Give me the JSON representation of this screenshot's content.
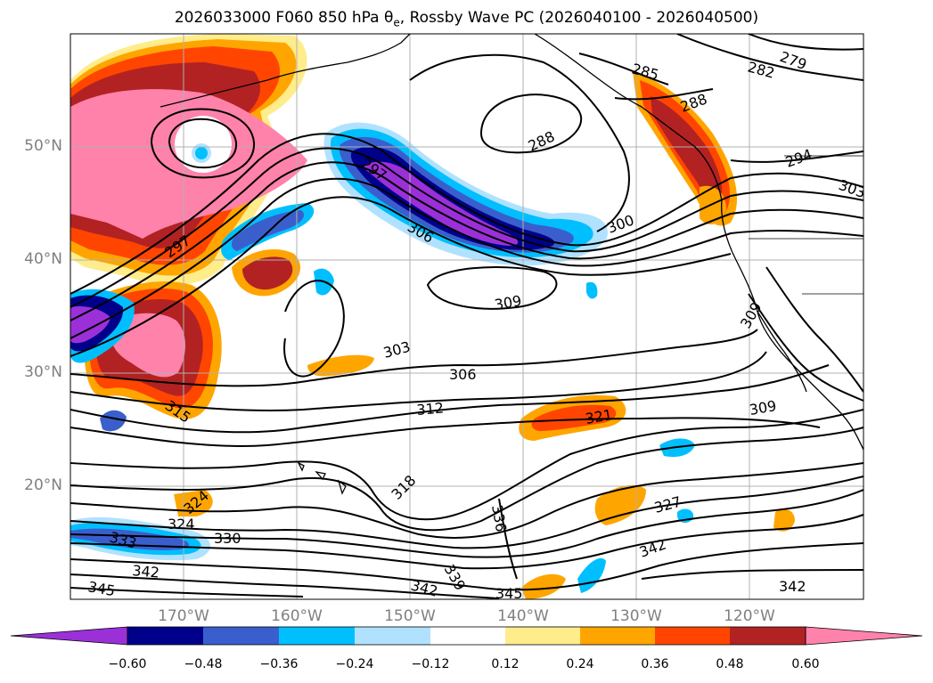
{
  "title": {
    "prefix": "2026033000 F060 850 hPa θ",
    "subscript": "e",
    "suffix": ", Rossby Wave PC (2026040100 - 2026040500)"
  },
  "axes": {
    "lat_labels": [
      "50°N",
      "40°N",
      "30°N",
      "20°N"
    ],
    "lon_labels": [
      "170°W",
      "160°W",
      "150°W",
      "140°W",
      "130°W",
      "120°W"
    ]
  },
  "colorbar": {
    "ticks": [
      "−0.60",
      "−0.48",
      "−0.36",
      "−0.24",
      "−0.12",
      "0.12",
      "0.24",
      "0.36",
      "0.48",
      "0.60"
    ],
    "colors": [
      "#9b30d9",
      "#00008b",
      "#3a5fcd",
      "#00bfff",
      "#b0e2ff",
      "#ffffff",
      "#ffec8b",
      "#ffa500",
      "#ff4500",
      "#b22222",
      "#ff82ab"
    ]
  },
  "contour_labels": [
    "279",
    "282",
    "285",
    "288",
    "288",
    "294",
    "303",
    "297",
    "306",
    "300",
    "297",
    "309",
    "303",
    "306",
    "312",
    "315",
    "309",
    "309",
    "321",
    "318",
    "324",
    "324",
    "333",
    "330",
    "336",
    "327",
    "342",
    "342",
    "339",
    "342",
    "345",
    "345",
    "342"
  ]
}
